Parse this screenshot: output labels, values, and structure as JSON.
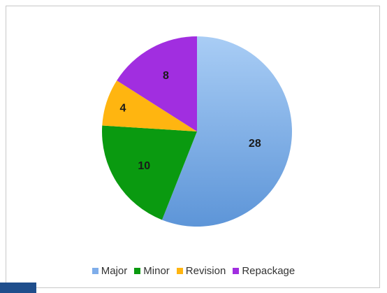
{
  "chart_data": {
    "type": "pie",
    "title": "",
    "categories": [
      "Major",
      "Minor",
      "Revision",
      "Repackage"
    ],
    "values": [
      28,
      10,
      4,
      8
    ],
    "colors": [
      "#8fb8ea",
      "#0a9a10",
      "#ffb510",
      "#a12ee0"
    ],
    "data_labels": [
      "28",
      "10",
      "4",
      "8"
    ],
    "legend_position": "bottom",
    "start_angle_deg": 0,
    "direction": "clockwise"
  }
}
